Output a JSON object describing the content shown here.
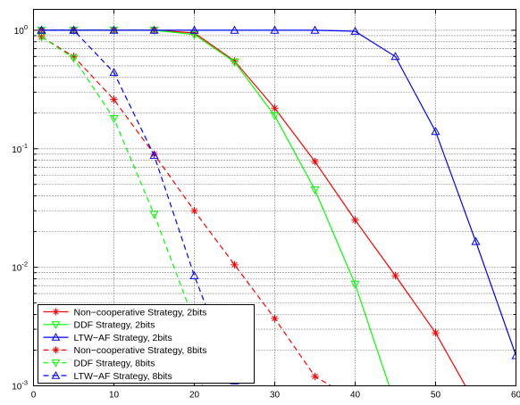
{
  "chart_data": {
    "type": "line",
    "title": "",
    "xlabel": "",
    "ylabel": "",
    "xlim": [
      0,
      60
    ],
    "ylim": [
      0.001,
      1.5
    ],
    "yscale": "log",
    "grid": true,
    "legend_position": "bottom-left",
    "x_ticks": [
      {
        "value": 0,
        "label": "0"
      },
      {
        "value": 10,
        "label": "10"
      },
      {
        "value": 20,
        "label": "20"
      },
      {
        "value": 30,
        "label": "30"
      },
      {
        "value": 40,
        "label": "40"
      },
      {
        "value": 50,
        "label": "50"
      },
      {
        "value": 60,
        "label": "60"
      }
    ],
    "y_ticks": [
      {
        "value": 1,
        "base": "10",
        "exp": "0"
      },
      {
        "value": 0.1,
        "base": "10",
        "exp": "-1"
      },
      {
        "value": 0.01,
        "base": "10",
        "exp": "-2"
      },
      {
        "value": 0.001,
        "base": "10",
        "exp": "-3"
      }
    ],
    "series": [
      {
        "name": "Non−cooperative Strategy, 2bits",
        "color": "#ff0000",
        "dash": "solid",
        "marker": "star",
        "x": [
          1,
          5,
          10,
          15,
          20,
          25,
          30,
          35,
          40,
          45,
          50,
          55
        ],
        "y": [
          1.0,
          1.0,
          1.0,
          1.0,
          0.95,
          0.55,
          0.22,
          0.078,
          0.025,
          0.0085,
          0.0028,
          0.0007
        ]
      },
      {
        "name": "DDF Strategy, 2bits",
        "color": "#00ff00",
        "dash": "solid",
        "marker": "triangle-down",
        "x": [
          1,
          5,
          10,
          15,
          20,
          25,
          30,
          35,
          40,
          45
        ],
        "y": [
          1.0,
          1.0,
          1.0,
          1.0,
          0.92,
          0.54,
          0.19,
          0.045,
          0.0072,
          0.0007
        ]
      },
      {
        "name": "LTW−AF Strategy, 2bits",
        "color": "#0000ff",
        "dash": "solid",
        "marker": "triangle-up",
        "x": [
          1,
          5,
          10,
          15,
          20,
          25,
          30,
          35,
          40,
          45,
          50,
          55,
          60
        ],
        "y": [
          1.0,
          1.0,
          1.0,
          1.0,
          1.0,
          1.0,
          1.0,
          1.0,
          0.98,
          0.6,
          0.14,
          0.0165,
          0.0018
        ]
      },
      {
        "name": "Non−cooperative Strategy, 8bits",
        "color": "#ff0000",
        "dash": "dashed",
        "marker": "star",
        "x": [
          1,
          5,
          10,
          15,
          20,
          25,
          30,
          35,
          37
        ],
        "y": [
          0.88,
          0.6,
          0.26,
          0.09,
          0.03,
          0.0105,
          0.0037,
          0.0012,
          0.001
        ]
      },
      {
        "name": "DDF Strategy, 8bits",
        "color": "#00ff00",
        "dash": "dashed",
        "marker": "triangle-down",
        "x": [
          1,
          5,
          10,
          15,
          20,
          21
        ],
        "y": [
          0.88,
          0.58,
          0.18,
          0.028,
          0.0035,
          0.001
        ]
      },
      {
        "name": "LTW−AF Strategy, 8bits",
        "color": "#0000ff",
        "dash": "dashed",
        "marker": "triangle-up",
        "x": [
          1,
          5,
          10,
          15,
          20,
          25
        ],
        "y": [
          1.0,
          1.0,
          0.44,
          0.088,
          0.0085,
          0.0011
        ]
      }
    ]
  }
}
